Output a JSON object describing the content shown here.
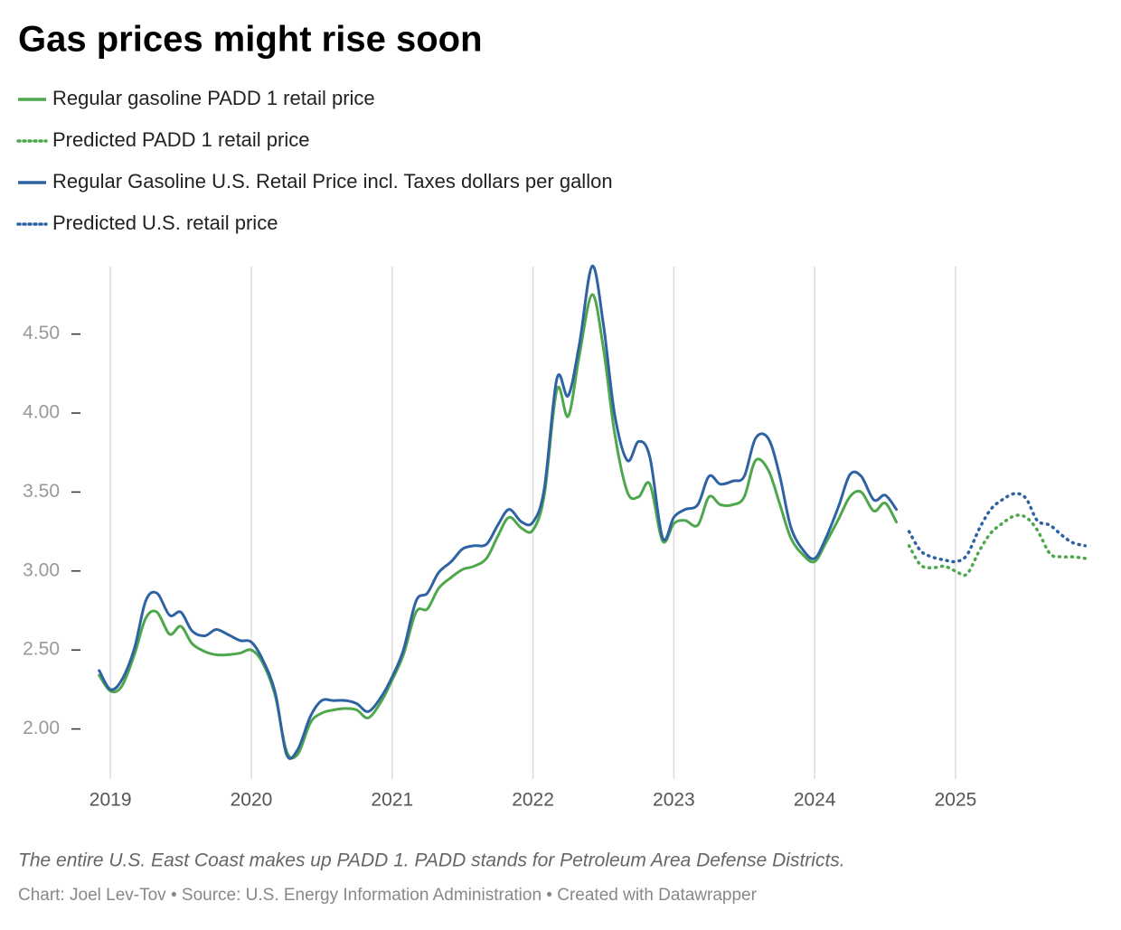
{
  "chart_data": {
    "type": "line",
    "title": "Gas prices might rise soon",
    "notes": "The entire U.S. East Coast makes up PADD 1. PADD stands for Petroleum Area Defense Districts.",
    "credit": "Chart: Joel Lev-Tov • Source: U.S. Energy Information Administration • Created with Datawrapper",
    "xlim": [
      2018.8,
      2025.95
    ],
    "xticks": [
      2019,
      2020,
      2021,
      2022,
      2023,
      2024,
      2025
    ],
    "ylim": [
      1.7,
      4.95
    ],
    "yticks": [
      {
        "value": 2,
        "label": "2.00"
      },
      {
        "value": 2.5,
        "label": "2.50"
      },
      {
        "value": 3,
        "label": "3.00"
      },
      {
        "value": 3.5,
        "label": "3.50"
      },
      {
        "value": 4,
        "label": "4.00"
      },
      {
        "value": 4.5,
        "label": "4.50"
      }
    ],
    "grid": "x",
    "legend": "top",
    "series": [
      {
        "name": "Regular gasoline PADD 1 retail price",
        "color": "#4ea74c",
        "dotted": false,
        "x": [
          2018.92,
          2019.0,
          2019.08,
          2019.17,
          2019.25,
          2019.33,
          2019.42,
          2019.5,
          2019.58,
          2019.67,
          2019.75,
          2019.83,
          2019.92,
          2020.0,
          2020.08,
          2020.17,
          2020.25,
          2020.33,
          2020.42,
          2020.5,
          2020.58,
          2020.67,
          2020.75,
          2020.83,
          2020.92,
          2021.0,
          2021.08,
          2021.17,
          2021.25,
          2021.33,
          2021.42,
          2021.5,
          2021.58,
          2021.67,
          2021.75,
          2021.83,
          2021.92,
          2022.0,
          2022.08,
          2022.17,
          2022.25,
          2022.33,
          2022.42,
          2022.5,
          2022.58,
          2022.67,
          2022.75,
          2022.83,
          2022.92,
          2023.0,
          2023.08,
          2023.17,
          2023.25,
          2023.33,
          2023.42,
          2023.5,
          2023.58,
          2023.67,
          2023.75,
          2023.83,
          2023.92,
          2024.0,
          2024.08,
          2024.17,
          2024.25,
          2024.33,
          2024.42,
          2024.5,
          2024.58
        ],
        "values": [
          2.34,
          2.24,
          2.27,
          2.47,
          2.7,
          2.74,
          2.6,
          2.65,
          2.54,
          2.49,
          2.47,
          2.47,
          2.48,
          2.5,
          2.42,
          2.21,
          1.86,
          1.84,
          2.04,
          2.1,
          2.12,
          2.13,
          2.12,
          2.07,
          2.17,
          2.31,
          2.47,
          2.74,
          2.76,
          2.89,
          2.96,
          3.01,
          3.03,
          3.08,
          3.22,
          3.34,
          3.27,
          3.26,
          3.48,
          4.15,
          3.98,
          4.37,
          4.75,
          4.41,
          3.87,
          3.5,
          3.47,
          3.55,
          3.19,
          3.3,
          3.32,
          3.29,
          3.47,
          3.42,
          3.42,
          3.47,
          3.7,
          3.64,
          3.43,
          3.21,
          3.1,
          3.06,
          3.18,
          3.33,
          3.47,
          3.5,
          3.38,
          3.43,
          3.31
        ]
      },
      {
        "name": "Predicted PADD 1 retail price",
        "color": "#4ea74c",
        "dotted": true,
        "x": [
          2024.67,
          2024.75,
          2024.83,
          2024.92,
          2025.0,
          2025.08,
          2025.17,
          2025.25,
          2025.33,
          2025.42,
          2025.5,
          2025.58,
          2025.67,
          2025.75,
          2025.83,
          2025.92
        ],
        "values": [
          3.16,
          3.04,
          3.02,
          3.03,
          3.0,
          2.98,
          3.13,
          3.24,
          3.3,
          3.35,
          3.34,
          3.26,
          3.11,
          3.09,
          3.09,
          3.08
        ]
      },
      {
        "name": "Regular Gasoline U.S. Retail Price incl. Taxes dollars per gallon",
        "color": "#2e62a3",
        "dotted": false,
        "x": [
          2018.92,
          2019.0,
          2019.08,
          2019.17,
          2019.25,
          2019.33,
          2019.42,
          2019.5,
          2019.58,
          2019.67,
          2019.75,
          2019.83,
          2019.92,
          2020.0,
          2020.08,
          2020.17,
          2020.25,
          2020.33,
          2020.42,
          2020.5,
          2020.58,
          2020.67,
          2020.75,
          2020.83,
          2020.92,
          2021.0,
          2021.08,
          2021.17,
          2021.25,
          2021.33,
          2021.42,
          2021.5,
          2021.58,
          2021.67,
          2021.75,
          2021.83,
          2021.92,
          2022.0,
          2022.08,
          2022.17,
          2022.25,
          2022.33,
          2022.42,
          2022.5,
          2022.58,
          2022.67,
          2022.75,
          2022.83,
          2022.92,
          2023.0,
          2023.08,
          2023.17,
          2023.25,
          2023.33,
          2023.42,
          2023.5,
          2023.58,
          2023.67,
          2023.75,
          2023.83,
          2023.92,
          2024.0,
          2024.08,
          2024.17,
          2024.25,
          2024.33,
          2024.42,
          2024.5,
          2024.58
        ],
        "values": [
          2.37,
          2.25,
          2.31,
          2.51,
          2.81,
          2.86,
          2.72,
          2.74,
          2.62,
          2.59,
          2.63,
          2.6,
          2.56,
          2.55,
          2.44,
          2.23,
          1.84,
          1.87,
          2.08,
          2.18,
          2.18,
          2.18,
          2.16,
          2.11,
          2.2,
          2.33,
          2.5,
          2.81,
          2.86,
          2.99,
          3.06,
          3.14,
          3.16,
          3.17,
          3.29,
          3.39,
          3.31,
          3.31,
          3.52,
          4.22,
          4.11,
          4.44,
          4.93,
          4.56,
          3.99,
          3.7,
          3.82,
          3.72,
          3.21,
          3.34,
          3.39,
          3.42,
          3.6,
          3.55,
          3.57,
          3.6,
          3.84,
          3.84,
          3.61,
          3.28,
          3.13,
          3.08,
          3.21,
          3.41,
          3.61,
          3.6,
          3.45,
          3.48,
          3.39
        ]
      },
      {
        "name": "Predicted U.S. retail price",
        "color": "#2e62a3",
        "dotted": true,
        "x": [
          2024.67,
          2024.75,
          2024.83,
          2024.92,
          2025.0,
          2025.08,
          2025.17,
          2025.25,
          2025.33,
          2025.42,
          2025.5,
          2025.58,
          2025.67,
          2025.75,
          2025.83,
          2025.92
        ],
        "values": [
          3.25,
          3.13,
          3.09,
          3.07,
          3.06,
          3.1,
          3.27,
          3.39,
          3.45,
          3.49,
          3.46,
          3.32,
          3.29,
          3.23,
          3.18,
          3.16
        ]
      }
    ]
  }
}
